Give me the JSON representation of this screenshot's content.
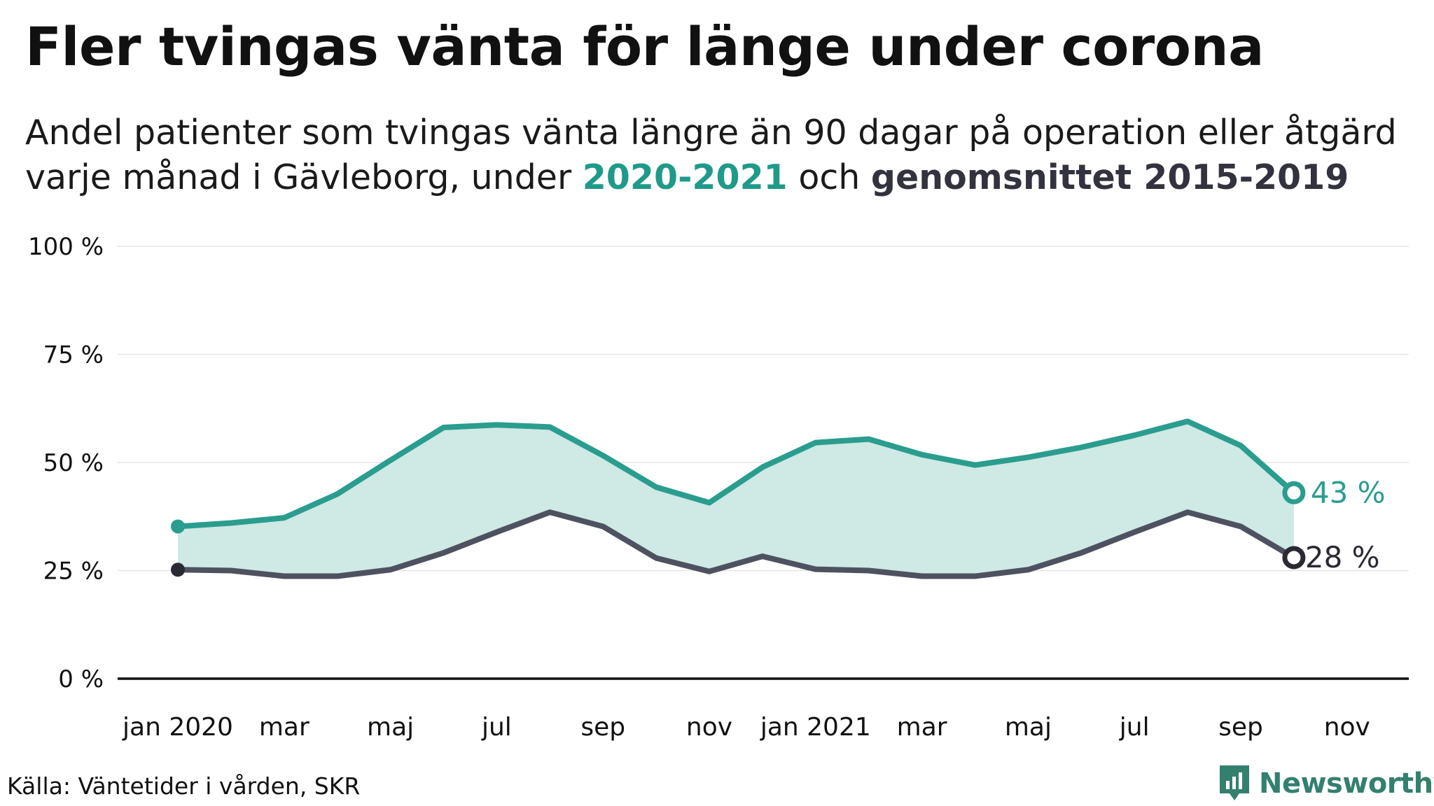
{
  "title": "Fler tvingas vänta för länge under corona",
  "subtitle": {
    "line1": "Andel patienter som tvingas vänta längre än 90 dagar på operation eller åtgärd",
    "line2_prefix": "varje månad i Gävleborg, under ",
    "highlight_a": "2020-2021",
    "line2_middle": " och ",
    "highlight_b": "genomsnittet 2015-2019"
  },
  "source": "Källa: Väntetider i vården, SKR",
  "brand": "Newsworthy",
  "colors": {
    "series_a": "#2a9d8f",
    "series_b": "#4e5260",
    "fill": "#cfe9e5",
    "highlight_a": "#1f9a8a",
    "highlight_b": "#33333f",
    "brand": "#33806f"
  },
  "chart_data": {
    "type": "line",
    "x": [
      "2020-01",
      "2020-02",
      "2020-03",
      "2020-04",
      "2020-05",
      "2020-06",
      "2020-07",
      "2020-08",
      "2020-09",
      "2020-10",
      "2020-11",
      "2020-12",
      "2021-01",
      "2021-02",
      "2021-03",
      "2021-04",
      "2021-05",
      "2021-06",
      "2021-07",
      "2021-08",
      "2021-09",
      "2021-10"
    ],
    "series": [
      {
        "name": "2020-2021",
        "values": [
          35.2,
          36.0,
          37.2,
          42.7,
          50.5,
          58.1,
          58.7,
          58.2,
          51.6,
          44.3,
          40.7,
          48.9,
          54.6,
          55.4,
          51.8,
          49.4,
          51.2,
          53.5,
          56.3,
          59.5,
          53.9,
          43.0
        ]
      },
      {
        "name": "genomsnittet 2015-2019",
        "values": [
          25.2,
          25.0,
          23.7,
          23.7,
          25.2,
          29.1,
          33.9,
          38.5,
          35.2,
          27.9,
          24.8,
          28.3,
          25.3,
          25.0,
          23.7,
          23.7,
          25.2,
          29.1,
          33.9,
          38.5,
          35.2,
          28.0
        ]
      }
    ],
    "y_ticks": [
      0,
      25,
      50,
      75,
      100
    ],
    "y_tick_labels": [
      "0 %",
      "25 %",
      "50 %",
      "75 %",
      "100 %"
    ],
    "ylim": [
      0,
      100
    ],
    "x_tick_labels": [
      "jan 2020",
      "mar",
      "maj",
      "jul",
      "sep",
      "nov",
      "jan 2021",
      "mar",
      "maj",
      "jul",
      "sep",
      "nov"
    ],
    "x_tick_months": [
      "2020-01",
      "2020-03",
      "2020-05",
      "2020-07",
      "2020-09",
      "2020-11",
      "2021-01",
      "2021-03",
      "2021-05",
      "2021-07",
      "2021-09",
      "2021-11"
    ],
    "end_labels": [
      "43 %",
      "28 %"
    ],
    "grid": true,
    "area_between_series": true
  }
}
